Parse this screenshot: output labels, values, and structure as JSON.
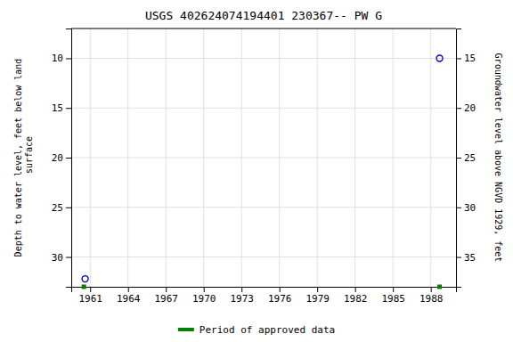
{
  "chart_data": {
    "type": "scatter",
    "title": "USGS 402624074194401 230367-- PW G",
    "y_label": "Depth to water level, feet below land\n surface",
    "y2_label": "Groundwater level above NGVD 1929, feet",
    "xlim": [
      1959.5,
      1990.0
    ],
    "xticks": [
      1961,
      1964,
      1967,
      1970,
      1973,
      1976,
      1979,
      1982,
      1985,
      1988
    ],
    "ylim": [
      33,
      7
    ],
    "yticks": [
      10,
      15,
      20,
      25,
      30
    ],
    "y2lim": [
      38,
      12
    ],
    "y2ticks": [
      15,
      20,
      25,
      30,
      35
    ],
    "grid": true,
    "legend": "bottom",
    "series": [
      {
        "color": "#0000cc",
        "marker": "open-circle",
        "x": [
          1960.6,
          1988.7
        ],
        "values": [
          32.2,
          10.0
        ]
      },
      {
        "name": "Period of approved data",
        "color": "#008000",
        "marker": "square",
        "x": [
          1960.5,
          1988.7
        ],
        "values": [
          33,
          33
        ]
      }
    ]
  }
}
